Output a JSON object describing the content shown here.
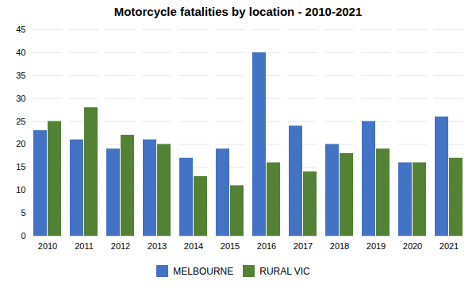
{
  "chart_data": {
    "type": "bar",
    "title": "Motorcycle fatalities by location - 2010-2021",
    "categories": [
      "2010",
      "2011",
      "2012",
      "2013",
      "2014",
      "2015",
      "2016",
      "2017",
      "2018",
      "2019",
      "2020",
      "2021"
    ],
    "series": [
      {
        "name": "MELBOURNE",
        "color": "#4472c4",
        "values": [
          23,
          21,
          19,
          21,
          17,
          19,
          40,
          24,
          20,
          25,
          16,
          26
        ]
      },
      {
        "name": "RURAL VIC",
        "color": "#548235",
        "values": [
          25,
          28,
          22,
          20,
          13,
          11,
          16,
          14,
          18,
          19,
          16,
          17
        ]
      }
    ],
    "ylim": [
      0,
      45
    ],
    "yticks": [
      0,
      5,
      10,
      15,
      20,
      25,
      30,
      35,
      40,
      45
    ],
    "grid": true,
    "legend": "bottom"
  }
}
